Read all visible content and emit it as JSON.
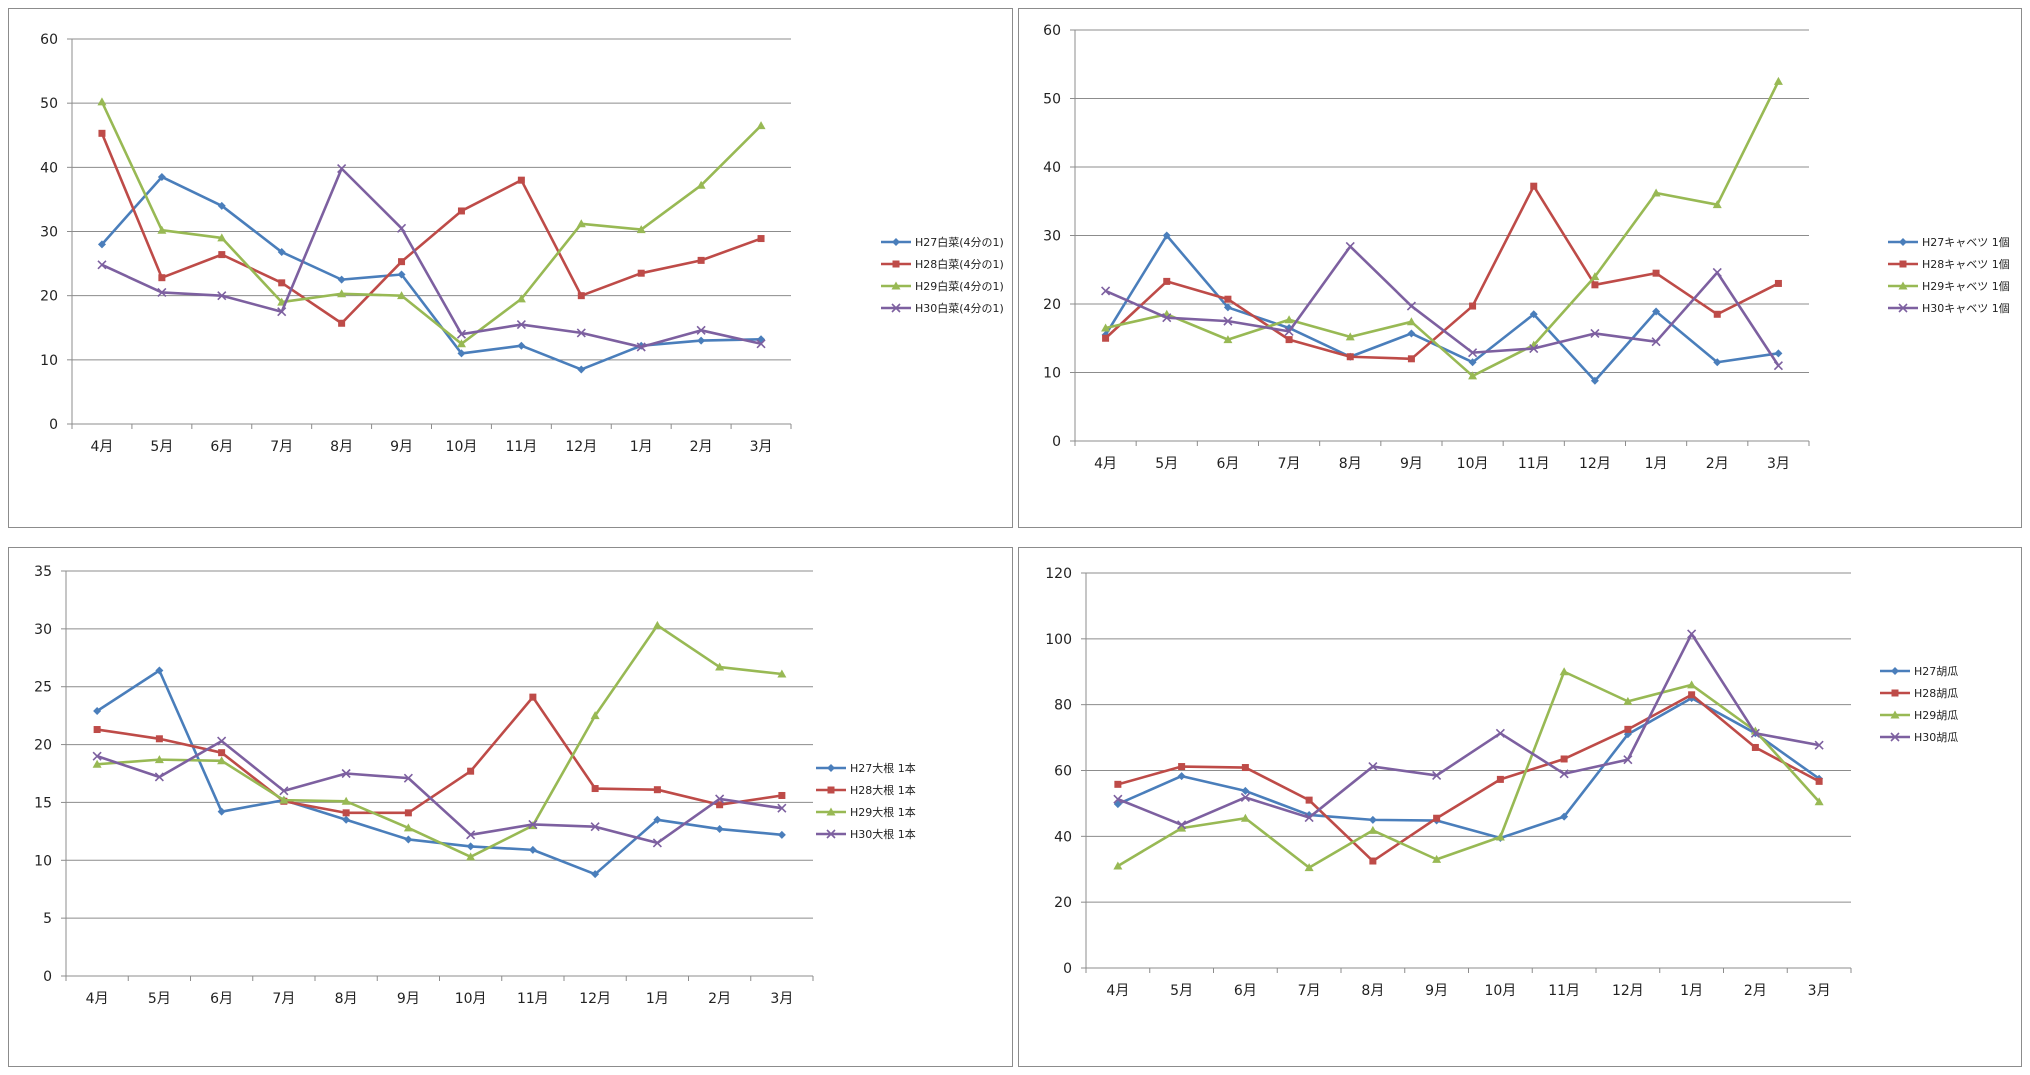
{
  "chart_data": [
    {
      "type": "line",
      "categories": [
        "4月",
        "5月",
        "6月",
        "7月",
        "8月",
        "9月",
        "10月",
        "11月",
        "12月",
        "1月",
        "2月",
        "3月"
      ],
      "ylim": [
        0,
        60
      ],
      "yticks": [
        0,
        10,
        20,
        30,
        40,
        50,
        60
      ],
      "grid": true,
      "legend": "right",
      "series": [
        {
          "name": "H27白菜(4分の1)",
          "color": "#4a7ebb",
          "marker": "diamond",
          "values": [
            28,
            38.5,
            34,
            26.8,
            22.5,
            23.3,
            11,
            12.2,
            8.5,
            12.2,
            13,
            13.2
          ]
        },
        {
          "name": "H28白菜(4分の1)",
          "color": "#be4b48",
          "marker": "square",
          "values": [
            45.3,
            22.8,
            26.4,
            22,
            15.7,
            25.3,
            33.2,
            38,
            20,
            23.5,
            25.5,
            28.9
          ]
        },
        {
          "name": "H29白菜(4分の1)",
          "color": "#98b954",
          "marker": "triangle",
          "values": [
            50.2,
            30.2,
            29,
            19,
            20.3,
            20,
            12.5,
            19.5,
            31.2,
            30.3,
            37.2,
            46.5
          ]
        },
        {
          "name": "H30白菜(4分の1)",
          "color": "#7d60a0",
          "marker": "x",
          "values": [
            24.8,
            20.5,
            20,
            17.5,
            39.8,
            30.5,
            14,
            15.5,
            14.2,
            12,
            14.6,
            12.5
          ]
        }
      ]
    },
    {
      "type": "line",
      "categories": [
        "4月",
        "5月",
        "6月",
        "7月",
        "8月",
        "9月",
        "10月",
        "11月",
        "12月",
        "1月",
        "2月",
        "3月"
      ],
      "ylim": [
        0,
        60
      ],
      "yticks": [
        0,
        10,
        20,
        30,
        40,
        50,
        60
      ],
      "grid": true,
      "legend": "right",
      "series": [
        {
          "name": "H27キャベツ 1個",
          "color": "#4a7ebb",
          "marker": "diamond",
          "values": [
            15.5,
            30,
            19.5,
            16.5,
            12.3,
            15.7,
            11.5,
            18.5,
            8.8,
            18.9,
            11.5,
            12.8
          ]
        },
        {
          "name": "H28キャベツ 1個",
          "color": "#be4b48",
          "marker": "square",
          "values": [
            15,
            23.3,
            20.7,
            14.8,
            12.3,
            12,
            19.7,
            37.2,
            22.8,
            24.5,
            18.5,
            23
          ]
        },
        {
          "name": "H29キャベツ 1個",
          "color": "#98b954",
          "marker": "triangle",
          "values": [
            16.5,
            18.5,
            14.8,
            17.7,
            15.2,
            17.4,
            9.5,
            14,
            24,
            36.2,
            34.5,
            52.5
          ]
        },
        {
          "name": "H30キャベツ 1個",
          "color": "#7d60a0",
          "marker": "x",
          "values": [
            21.9,
            18,
            17.5,
            16,
            28.4,
            19.7,
            12.9,
            13.5,
            15.7,
            14.5,
            24.6,
            11
          ]
        }
      ]
    },
    {
      "type": "line",
      "categories": [
        "4月",
        "5月",
        "6月",
        "7月",
        "8月",
        "9月",
        "10月",
        "11月",
        "12月",
        "1月",
        "2月",
        "3月"
      ],
      "ylim": [
        0,
        35
      ],
      "yticks": [
        0,
        5,
        10,
        15,
        20,
        25,
        30,
        35
      ],
      "grid": true,
      "legend": "right",
      "series": [
        {
          "name": "H27大根 1本",
          "color": "#4a7ebb",
          "marker": "diamond",
          "values": [
            22.9,
            26.4,
            14.2,
            15.2,
            13.5,
            11.8,
            11.2,
            10.9,
            8.8,
            13.5,
            12.7,
            12.2
          ]
        },
        {
          "name": "H28大根 1本",
          "color": "#be4b48",
          "marker": "square",
          "values": [
            21.3,
            20.5,
            19.3,
            15.1,
            14.1,
            14.1,
            17.7,
            24.1,
            16.2,
            16.1,
            14.8,
            15.6
          ]
        },
        {
          "name": "H29大根 1本",
          "color": "#98b954",
          "marker": "triangle",
          "values": [
            18.3,
            18.7,
            18.6,
            15.2,
            15.1,
            12.8,
            10.3,
            13,
            22.5,
            30.3,
            26.7,
            26.1
          ]
        },
        {
          "name": "H30大根 1本",
          "color": "#7d60a0",
          "marker": "x",
          "values": [
            19,
            17.2,
            20.3,
            16,
            17.5,
            17.1,
            12.2,
            13.1,
            12.9,
            11.5,
            15.3,
            14.5
          ]
        }
      ]
    },
    {
      "type": "line",
      "categories": [
        "4月",
        "5月",
        "6月",
        "7月",
        "8月",
        "9月",
        "10月",
        "11月",
        "12月",
        "1月",
        "2月",
        "3月"
      ],
      "ylim": [
        0,
        120
      ],
      "yticks": [
        0,
        20,
        40,
        60,
        80,
        100,
        120
      ],
      "grid": true,
      "legend": "right",
      "series": [
        {
          "name": "H27胡瓜",
          "color": "#4a7ebb",
          "marker": "diamond",
          "values": [
            49.8,
            58.3,
            53.8,
            46.5,
            45,
            44.8,
            39.5,
            46,
            71,
            82,
            71.3,
            57.5
          ]
        },
        {
          "name": "H28胡瓜",
          "color": "#be4b48",
          "marker": "square",
          "values": [
            55.8,
            61.2,
            60.9,
            51,
            32.5,
            45.5,
            57.3,
            63.5,
            72.5,
            83,
            67,
            56.7
          ]
        },
        {
          "name": "H29胡瓜",
          "color": "#98b954",
          "marker": "triangle",
          "values": [
            31,
            42.5,
            45.5,
            30.5,
            41.8,
            33,
            39.8,
            90,
            81,
            86,
            72,
            50.5
          ]
        },
        {
          "name": "H30胡瓜",
          "color": "#7d60a0",
          "marker": "x",
          "values": [
            51.3,
            43.5,
            51.8,
            45.7,
            61.2,
            58.5,
            71.3,
            59,
            63.3,
            101.5,
            71.3,
            67.7
          ]
        }
      ]
    }
  ]
}
